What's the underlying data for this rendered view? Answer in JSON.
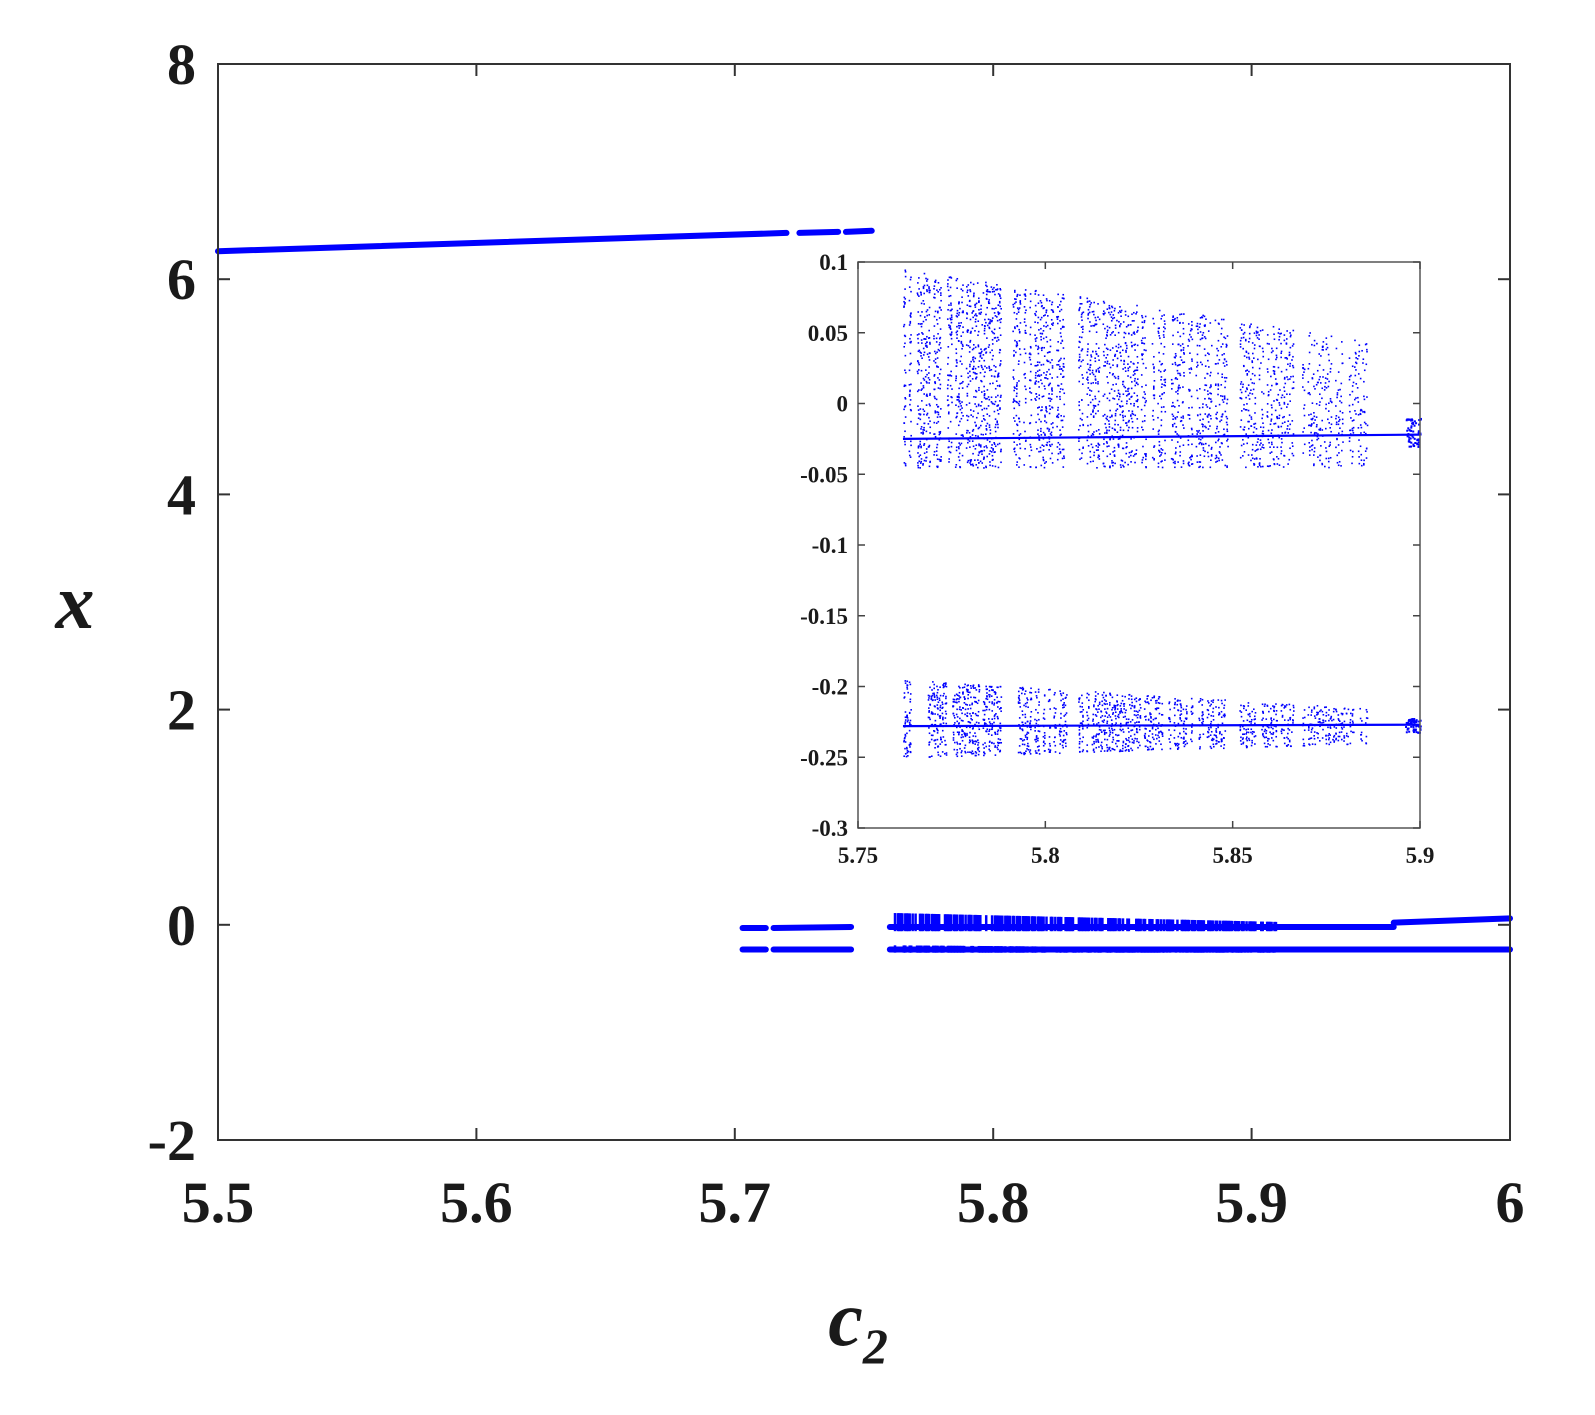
{
  "chart_data": [
    {
      "type": "scatter",
      "title": "",
      "xlabel": "c",
      "xlabel_subscript": "2",
      "ylabel": "x",
      "xlim": [
        5.5,
        6
      ],
      "ylim": [
        -2,
        8
      ],
      "xticks": [
        5.5,
        5.6,
        5.7,
        5.8,
        5.9,
        6
      ],
      "xtick_labels": [
        "5.5",
        "5.6",
        "5.7",
        "5.8",
        "5.9",
        "6"
      ],
      "yticks": [
        -2,
        0,
        2,
        4,
        6,
        8
      ],
      "ytick_labels": [
        "-2",
        "0",
        "2",
        "4",
        "6",
        "8"
      ],
      "grid": false,
      "series_color": "#0000ff",
      "branches": [
        {
          "x_start": 5.5,
          "x_end": 5.72,
          "y_start": 6.26,
          "y_end": 6.43
        },
        {
          "x_start": 5.725,
          "x_end": 5.74,
          "y_start": 6.43,
          "y_end": 6.44
        },
        {
          "x_start": 5.743,
          "x_end": 5.753,
          "y_start": 6.44,
          "y_end": 6.45
        },
        {
          "x_start": 5.703,
          "x_end": 5.712,
          "y_start": -0.03,
          "y_end": -0.03
        },
        {
          "x_start": 5.715,
          "x_end": 5.745,
          "y_start": -0.03,
          "y_end": -0.02
        },
        {
          "x_start": 5.703,
          "x_end": 5.712,
          "y_start": -0.23,
          "y_end": -0.23
        },
        {
          "x_start": 5.715,
          "x_end": 5.745,
          "y_start": -0.23,
          "y_end": -0.23
        },
        {
          "x_start": 5.76,
          "x_end": 5.955,
          "y_start": -0.02,
          "y_end": -0.02
        },
        {
          "x_start": 5.955,
          "x_end": 6.0,
          "y_start": 0.02,
          "y_end": 0.06
        },
        {
          "x_start": 5.76,
          "x_end": 6.0,
          "y_start": -0.23,
          "y_end": -0.23
        }
      ],
      "chaotic_bands": [
        {
          "x_start": 5.762,
          "x_end": 5.91,
          "y_min": -0.05,
          "y_max": 0.1
        },
        {
          "x_start": 5.762,
          "x_end": 5.91,
          "y_min": -0.25,
          "y_max": -0.2
        }
      ]
    },
    {
      "type": "scatter",
      "title": "",
      "role": "inset",
      "xlabel": "",
      "ylabel": "",
      "xlim": [
        5.75,
        5.9
      ],
      "ylim": [
        -0.3,
        0.1
      ],
      "xticks": [
        5.75,
        5.8,
        5.85,
        5.9
      ],
      "xtick_labels": [
        "5.75",
        "5.8",
        "5.85",
        "5.9"
      ],
      "yticks": [
        -0.3,
        -0.25,
        -0.2,
        -0.15,
        -0.1,
        -0.05,
        0,
        0.05,
        0.1
      ],
      "ytick_labels": [
        "-0.3",
        "-0.25",
        "-0.2",
        "-0.15",
        "-0.1",
        "-0.05",
        "0",
        "0.05",
        "0.1"
      ],
      "grid": false,
      "series_color": "#0000ff",
      "upper_band": {
        "x_start": 5.762,
        "x_end": 5.886,
        "y_max_start": 0.095,
        "y_max_end": 0.045,
        "y_min": -0.045
      },
      "lower_band": {
        "x_start": 5.762,
        "x_end": 5.886,
        "y_max_start": -0.195,
        "y_max_end": -0.215,
        "y_min_start": -0.25,
        "y_min_end": -0.24
      },
      "lines": [
        {
          "x_start": 5.762,
          "x_end": 5.9,
          "y_start": -0.025,
          "y_end": -0.022
        },
        {
          "x_start": 5.762,
          "x_end": 5.9,
          "y_start": -0.228,
          "y_end": -0.227
        }
      ],
      "end_clusters": [
        {
          "x_start": 5.896,
          "x_end": 5.9,
          "y_min": -0.03,
          "y_max": -0.01
        },
        {
          "x_start": 5.896,
          "x_end": 5.9,
          "y_min": -0.232,
          "y_max": -0.222
        }
      ]
    }
  ]
}
